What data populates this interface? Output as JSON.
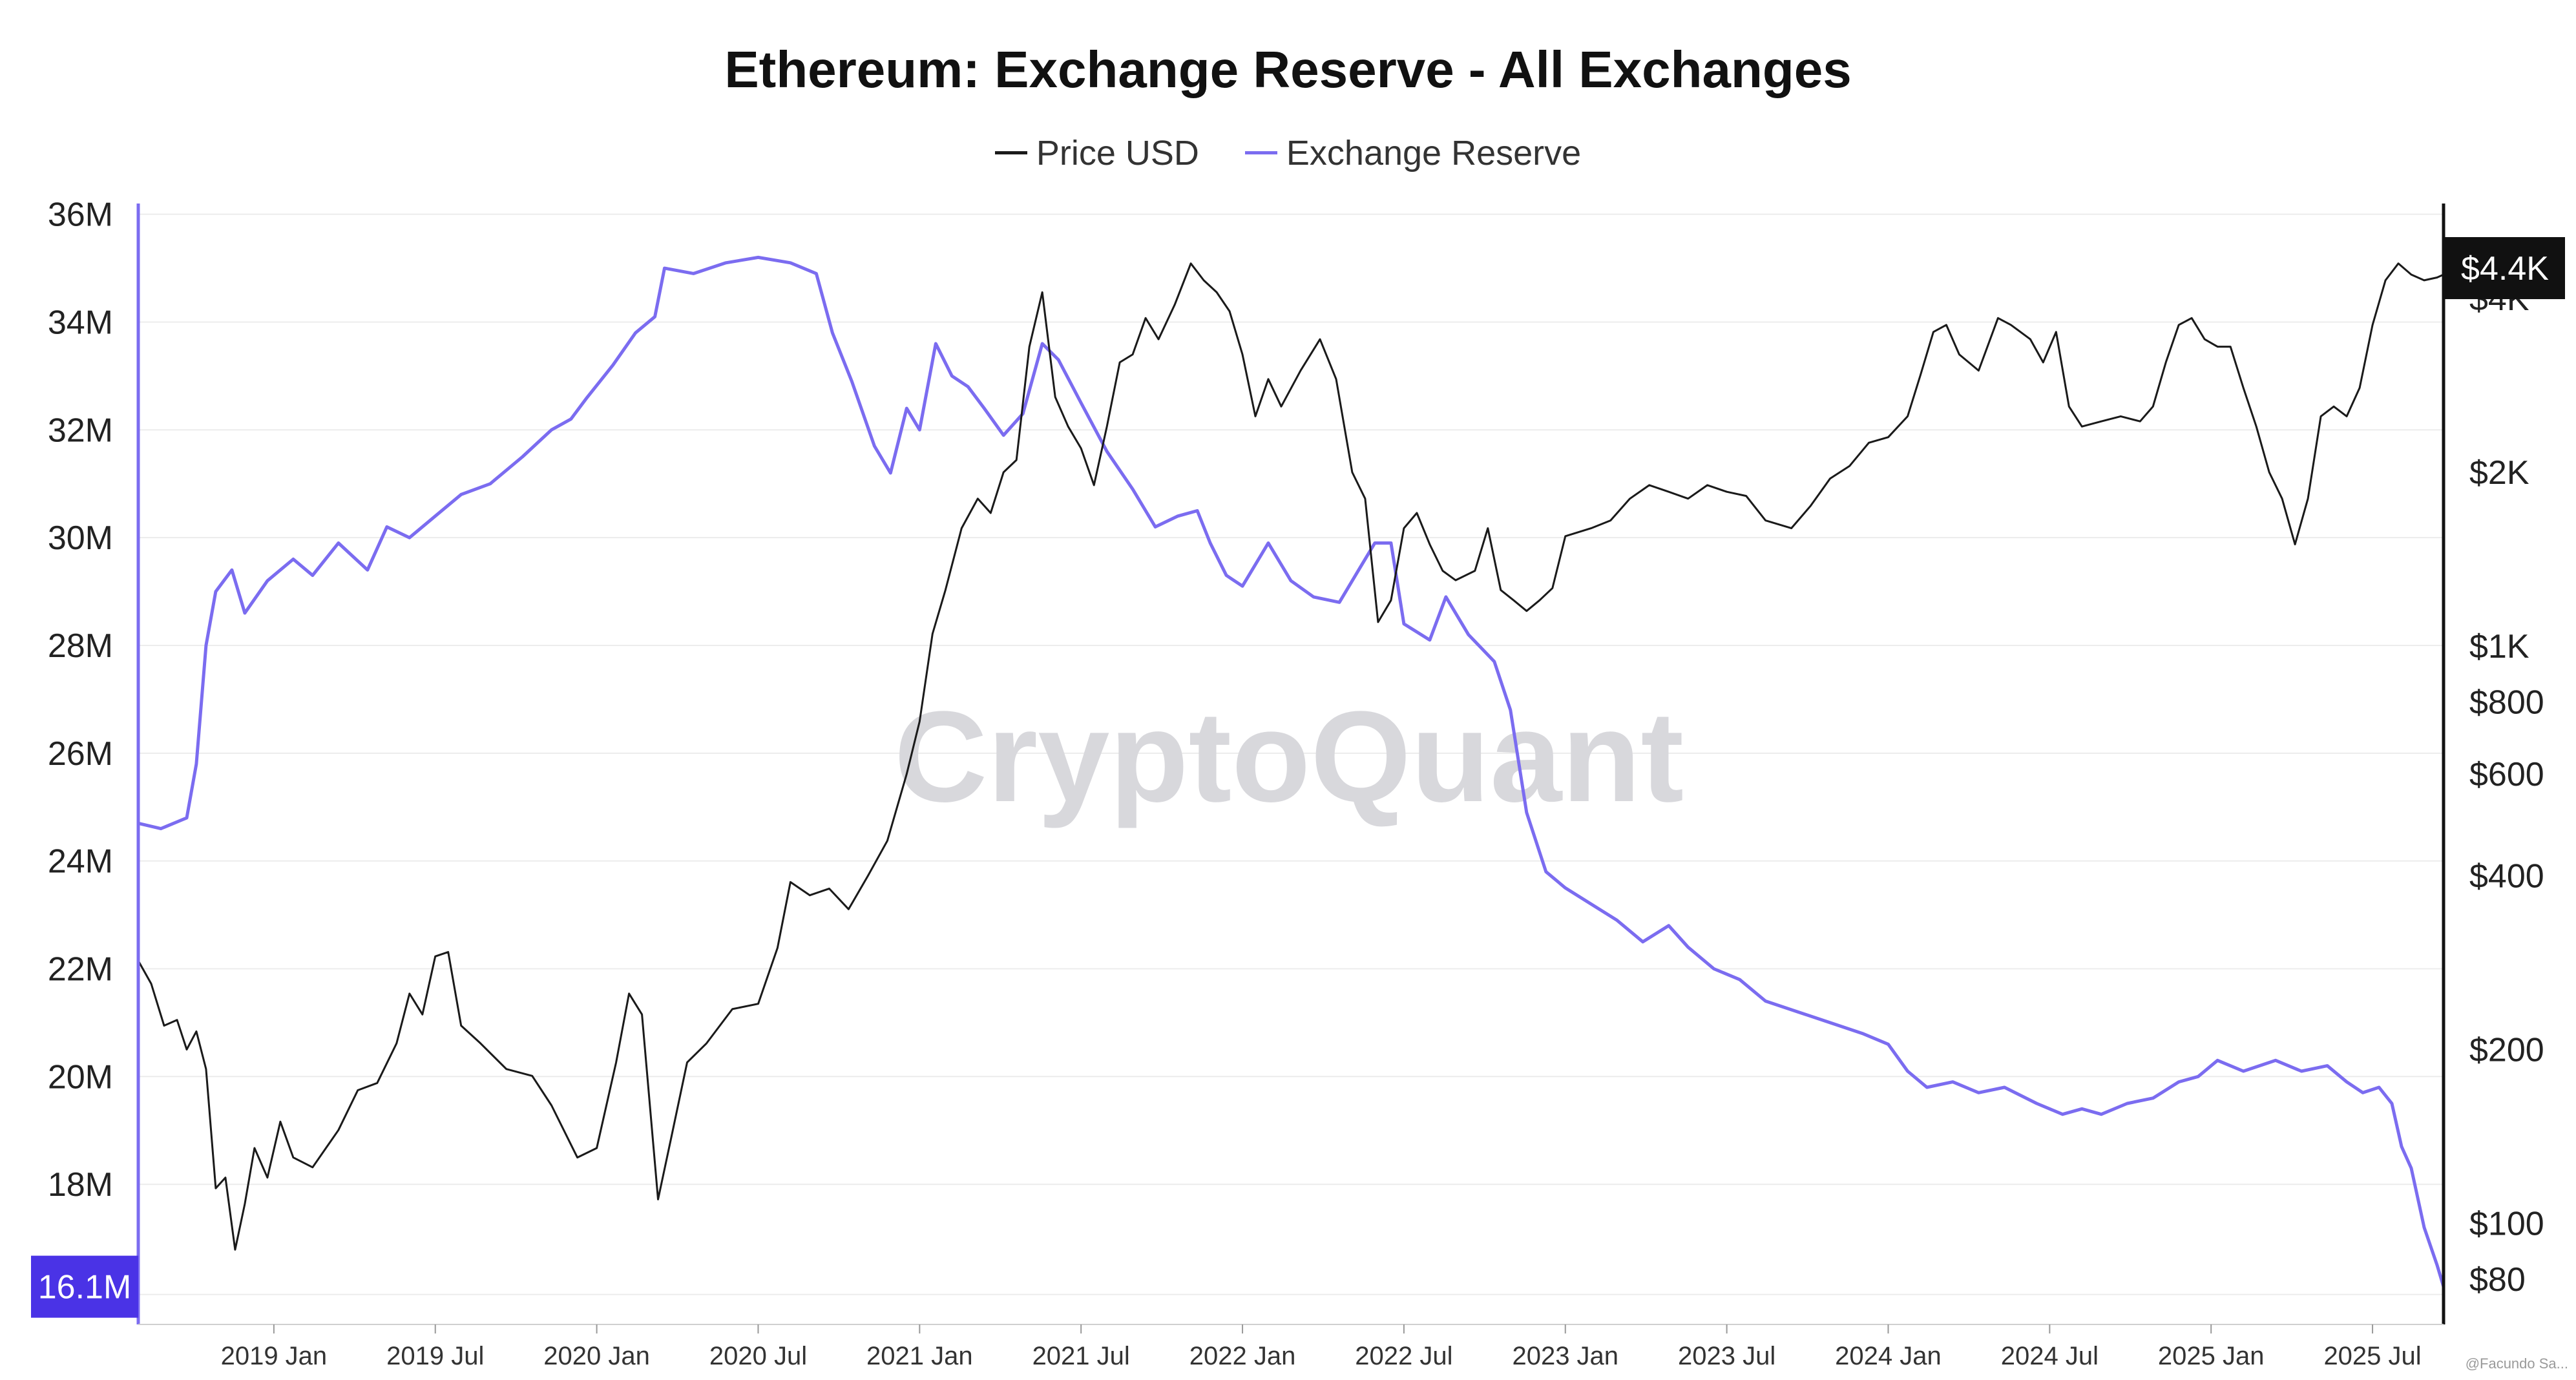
{
  "chart_data": {
    "type": "line",
    "title": "Ethereum: Exchange Reserve - All Exchanges",
    "watermark": "CryptoQuant",
    "credit": "@Facundo Sa...",
    "legend": [
      {
        "name": "Price USD",
        "color": "#1a1a1a"
      },
      {
        "name": "Exchange Reserve",
        "color": "#7b6cf0"
      }
    ],
    "x_axis": {
      "start": 2018.58,
      "end": 2025.72,
      "ticks": [
        {
          "label": "2019 Jan",
          "t": 2019.0
        },
        {
          "label": "2019 Jul",
          "t": 2019.5
        },
        {
          "label": "2020 Jan",
          "t": 2020.0
        },
        {
          "label": "2020 Jul",
          "t": 2020.5
        },
        {
          "label": "2021 Jan",
          "t": 2021.0
        },
        {
          "label": "2021 Jul",
          "t": 2021.5
        },
        {
          "label": "2022 Jan",
          "t": 2022.0
        },
        {
          "label": "2022 Jul",
          "t": 2022.5
        },
        {
          "label": "2023 Jan",
          "t": 2023.0
        },
        {
          "label": "2023 Jul",
          "t": 2023.5
        },
        {
          "label": "2024 Jan",
          "t": 2024.0
        },
        {
          "label": "2024 Jul",
          "t": 2024.5
        },
        {
          "label": "2025 Jan",
          "t": 2025.0
        },
        {
          "label": "2025 Jul",
          "t": 2025.5
        }
      ]
    },
    "left_axis": {
      "name": "Exchange Reserve",
      "ylim": [
        15.4,
        36.2
      ],
      "ticks": [
        {
          "label": "36M",
          "v": 36
        },
        {
          "label": "34M",
          "v": 34
        },
        {
          "label": "32M",
          "v": 32
        },
        {
          "label": "30M",
          "v": 30
        },
        {
          "label": "28M",
          "v": 28
        },
        {
          "label": "26M",
          "v": 26
        },
        {
          "label": "24M",
          "v": 24
        },
        {
          "label": "22M",
          "v": 22
        },
        {
          "label": "20M",
          "v": 20
        },
        {
          "label": "18M",
          "v": 18
        }
      ],
      "current_badge": {
        "label": "16.1M",
        "v": 16.1,
        "color": "#4a33e6"
      }
    },
    "right_axis": {
      "name": "Price USD",
      "scale": "log",
      "ticks": [
        {
          "label": "$4K",
          "v": 4000
        },
        {
          "label": "$2K",
          "v": 2000
        },
        {
          "label": "$1K",
          "v": 1000
        },
        {
          "label": "$800",
          "v": 800
        },
        {
          "label": "$600",
          "v": 600
        },
        {
          "label": "$400",
          "v": 400
        },
        {
          "label": "$200",
          "v": 200
        },
        {
          "label": "$100",
          "v": 100
        },
        {
          "label": "$80",
          "v": 80
        }
      ],
      "current_badge": {
        "label": "$4.4K",
        "v": 4400,
        "color": "#111111"
      }
    },
    "series": [
      {
        "name": "Exchange Reserve",
        "unit": "M ETH",
        "color": "#7b6cf0",
        "points": [
          [
            2018.58,
            24.7
          ],
          [
            2018.65,
            24.6
          ],
          [
            2018.73,
            24.8
          ],
          [
            2018.76,
            25.8
          ],
          [
            2018.79,
            28.0
          ],
          [
            2018.82,
            29.0
          ],
          [
            2018.87,
            29.4
          ],
          [
            2018.91,
            28.6
          ],
          [
            2018.98,
            29.2
          ],
          [
            2019.06,
            29.6
          ],
          [
            2019.12,
            29.3
          ],
          [
            2019.2,
            29.9
          ],
          [
            2019.29,
            29.4
          ],
          [
            2019.35,
            30.2
          ],
          [
            2019.42,
            30.0
          ],
          [
            2019.5,
            30.4
          ],
          [
            2019.58,
            30.8
          ],
          [
            2019.67,
            31.0
          ],
          [
            2019.77,
            31.5
          ],
          [
            2019.86,
            32.0
          ],
          [
            2019.92,
            32.2
          ],
          [
            2019.97,
            32.6
          ],
          [
            2020.05,
            33.2
          ],
          [
            2020.12,
            33.8
          ],
          [
            2020.18,
            34.1
          ],
          [
            2020.21,
            35.0
          ],
          [
            2020.3,
            34.9
          ],
          [
            2020.4,
            35.1
          ],
          [
            2020.5,
            35.2
          ],
          [
            2020.6,
            35.1
          ],
          [
            2020.68,
            34.9
          ],
          [
            2020.73,
            33.8
          ],
          [
            2020.79,
            32.9
          ],
          [
            2020.86,
            31.7
          ],
          [
            2020.91,
            31.2
          ],
          [
            2020.96,
            32.4
          ],
          [
            2021.0,
            32.0
          ],
          [
            2021.05,
            33.6
          ],
          [
            2021.1,
            33.0
          ],
          [
            2021.15,
            32.8
          ],
          [
            2021.2,
            32.4
          ],
          [
            2021.26,
            31.9
          ],
          [
            2021.32,
            32.3
          ],
          [
            2021.38,
            33.6
          ],
          [
            2021.43,
            33.3
          ],
          [
            2021.5,
            32.5
          ],
          [
            2021.58,
            31.6
          ],
          [
            2021.66,
            30.9
          ],
          [
            2021.73,
            30.2
          ],
          [
            2021.8,
            30.4
          ],
          [
            2021.86,
            30.5
          ],
          [
            2021.9,
            29.9
          ],
          [
            2021.95,
            29.3
          ],
          [
            2022.0,
            29.1
          ],
          [
            2022.08,
            29.9
          ],
          [
            2022.15,
            29.2
          ],
          [
            2022.22,
            28.9
          ],
          [
            2022.3,
            28.8
          ],
          [
            2022.36,
            29.4
          ],
          [
            2022.41,
            29.9
          ],
          [
            2022.46,
            29.9
          ],
          [
            2022.5,
            28.4
          ],
          [
            2022.58,
            28.1
          ],
          [
            2022.63,
            28.9
          ],
          [
            2022.7,
            28.2
          ],
          [
            2022.78,
            27.7
          ],
          [
            2022.83,
            26.8
          ],
          [
            2022.88,
            24.9
          ],
          [
            2022.94,
            23.8
          ],
          [
            2023.0,
            23.5
          ],
          [
            2023.08,
            23.2
          ],
          [
            2023.16,
            22.9
          ],
          [
            2023.24,
            22.5
          ],
          [
            2023.32,
            22.8
          ],
          [
            2023.38,
            22.4
          ],
          [
            2023.46,
            22.0
          ],
          [
            2023.54,
            21.8
          ],
          [
            2023.62,
            21.4
          ],
          [
            2023.72,
            21.2
          ],
          [
            2023.82,
            21.0
          ],
          [
            2023.92,
            20.8
          ],
          [
            2024.0,
            20.6
          ],
          [
            2024.06,
            20.1
          ],
          [
            2024.12,
            19.8
          ],
          [
            2024.2,
            19.9
          ],
          [
            2024.28,
            19.7
          ],
          [
            2024.36,
            19.8
          ],
          [
            2024.46,
            19.5
          ],
          [
            2024.54,
            19.3
          ],
          [
            2024.6,
            19.4
          ],
          [
            2024.66,
            19.3
          ],
          [
            2024.74,
            19.5
          ],
          [
            2024.82,
            19.6
          ],
          [
            2024.9,
            19.9
          ],
          [
            2024.96,
            20.0
          ],
          [
            2025.02,
            20.3
          ],
          [
            2025.1,
            20.1
          ],
          [
            2025.2,
            20.3
          ],
          [
            2025.28,
            20.1
          ],
          [
            2025.36,
            20.2
          ],
          [
            2025.42,
            19.9
          ],
          [
            2025.47,
            19.7
          ],
          [
            2025.52,
            19.8
          ],
          [
            2025.56,
            19.5
          ],
          [
            2025.59,
            18.7
          ],
          [
            2025.62,
            18.3
          ],
          [
            2025.66,
            17.2
          ],
          [
            2025.7,
            16.5
          ],
          [
            2025.72,
            16.1
          ]
        ]
      },
      {
        "name": "Price USD",
        "unit": "USD",
        "color": "#1a1a1a",
        "points": [
          [
            2018.58,
            285
          ],
          [
            2018.62,
            260
          ],
          [
            2018.66,
            220
          ],
          [
            2018.7,
            225
          ],
          [
            2018.73,
            200
          ],
          [
            2018.76,
            215
          ],
          [
            2018.79,
            185
          ],
          [
            2018.82,
            115
          ],
          [
            2018.85,
            120
          ],
          [
            2018.88,
            90
          ],
          [
            2018.91,
            108
          ],
          [
            2018.94,
            135
          ],
          [
            2018.98,
            120
          ],
          [
            2019.02,
            150
          ],
          [
            2019.06,
            130
          ],
          [
            2019.12,
            125
          ],
          [
            2019.2,
            145
          ],
          [
            2019.26,
            170
          ],
          [
            2019.32,
            175
          ],
          [
            2019.38,
            205
          ],
          [
            2019.42,
            250
          ],
          [
            2019.46,
            230
          ],
          [
            2019.5,
            290
          ],
          [
            2019.54,
            295
          ],
          [
            2019.58,
            220
          ],
          [
            2019.64,
            205
          ],
          [
            2019.72,
            185
          ],
          [
            2019.8,
            180
          ],
          [
            2019.86,
            160
          ],
          [
            2019.94,
            130
          ],
          [
            2020.0,
            135
          ],
          [
            2020.06,
            190
          ],
          [
            2020.1,
            250
          ],
          [
            2020.14,
            230
          ],
          [
            2020.19,
            110
          ],
          [
            2020.23,
            140
          ],
          [
            2020.28,
            190
          ],
          [
            2020.34,
            205
          ],
          [
            2020.42,
            235
          ],
          [
            2020.5,
            240
          ],
          [
            2020.56,
            300
          ],
          [
            2020.6,
            390
          ],
          [
            2020.66,
            370
          ],
          [
            2020.72,
            380
          ],
          [
            2020.78,
            350
          ],
          [
            2020.84,
            400
          ],
          [
            2020.9,
            460
          ],
          [
            2020.96,
            600
          ],
          [
            2021.0,
            740
          ],
          [
            2021.04,
            1050
          ],
          [
            2021.08,
            1250
          ],
          [
            2021.13,
            1600
          ],
          [
            2021.18,
            1800
          ],
          [
            2021.22,
            1700
          ],
          [
            2021.26,
            2000
          ],
          [
            2021.3,
            2100
          ],
          [
            2021.34,
            3300
          ],
          [
            2021.38,
            4100
          ],
          [
            2021.42,
            2700
          ],
          [
            2021.46,
            2400
          ],
          [
            2021.5,
            2200
          ],
          [
            2021.54,
            1900
          ],
          [
            2021.58,
            2400
          ],
          [
            2021.62,
            3100
          ],
          [
            2021.66,
            3200
          ],
          [
            2021.7,
            3700
          ],
          [
            2021.74,
            3400
          ],
          [
            2021.79,
            3900
          ],
          [
            2021.84,
            4600
          ],
          [
            2021.88,
            4300
          ],
          [
            2021.92,
            4100
          ],
          [
            2021.96,
            3800
          ],
          [
            2022.0,
            3200
          ],
          [
            2022.04,
            2500
          ],
          [
            2022.08,
            2900
          ],
          [
            2022.12,
            2600
          ],
          [
            2022.18,
            3000
          ],
          [
            2022.24,
            3400
          ],
          [
            2022.29,
            2900
          ],
          [
            2022.34,
            2000
          ],
          [
            2022.38,
            1800
          ],
          [
            2022.42,
            1100
          ],
          [
            2022.46,
            1200
          ],
          [
            2022.5,
            1600
          ],
          [
            2022.54,
            1700
          ],
          [
            2022.58,
            1500
          ],
          [
            2022.62,
            1350
          ],
          [
            2022.66,
            1300
          ],
          [
            2022.72,
            1350
          ],
          [
            2022.76,
            1600
          ],
          [
            2022.8,
            1250
          ],
          [
            2022.84,
            1200
          ],
          [
            2022.88,
            1150
          ],
          [
            2022.92,
            1200
          ],
          [
            2022.96,
            1260
          ],
          [
            2023.0,
            1550
          ],
          [
            2023.08,
            1600
          ],
          [
            2023.14,
            1650
          ],
          [
            2023.2,
            1800
          ],
          [
            2023.26,
            1900
          ],
          [
            2023.32,
            1850
          ],
          [
            2023.38,
            1800
          ],
          [
            2023.44,
            1900
          ],
          [
            2023.5,
            1850
          ],
          [
            2023.56,
            1820
          ],
          [
            2023.62,
            1650
          ],
          [
            2023.7,
            1600
          ],
          [
            2023.76,
            1750
          ],
          [
            2023.82,
            1950
          ],
          [
            2023.88,
            2050
          ],
          [
            2023.94,
            2250
          ],
          [
            2024.0,
            2300
          ],
          [
            2024.06,
            2500
          ],
          [
            2024.1,
            2950
          ],
          [
            2024.14,
            3500
          ],
          [
            2024.18,
            3600
          ],
          [
            2024.22,
            3200
          ],
          [
            2024.28,
            3000
          ],
          [
            2024.34,
            3700
          ],
          [
            2024.38,
            3600
          ],
          [
            2024.44,
            3400
          ],
          [
            2024.48,
            3100
          ],
          [
            2024.52,
            3500
          ],
          [
            2024.56,
            2600
          ],
          [
            2024.6,
            2400
          ],
          [
            2024.66,
            2450
          ],
          [
            2024.72,
            2500
          ],
          [
            2024.78,
            2450
          ],
          [
            2024.82,
            2600
          ],
          [
            2024.86,
            3100
          ],
          [
            2024.9,
            3600
          ],
          [
            2024.94,
            3700
          ],
          [
            2024.98,
            3400
          ],
          [
            2025.02,
            3300
          ],
          [
            2025.06,
            3300
          ],
          [
            2025.1,
            2800
          ],
          [
            2025.14,
            2400
          ],
          [
            2025.18,
            2000
          ],
          [
            2025.22,
            1800
          ],
          [
            2025.26,
            1500
          ],
          [
            2025.3,
            1800
          ],
          [
            2025.34,
            2500
          ],
          [
            2025.38,
            2600
          ],
          [
            2025.42,
            2500
          ],
          [
            2025.46,
            2800
          ],
          [
            2025.5,
            3600
          ],
          [
            2025.54,
            4300
          ],
          [
            2025.58,
            4600
          ],
          [
            2025.62,
            4400
          ],
          [
            2025.66,
            4300
          ],
          [
            2025.7,
            4350
          ],
          [
            2025.72,
            4400
          ]
        ]
      }
    ]
  }
}
